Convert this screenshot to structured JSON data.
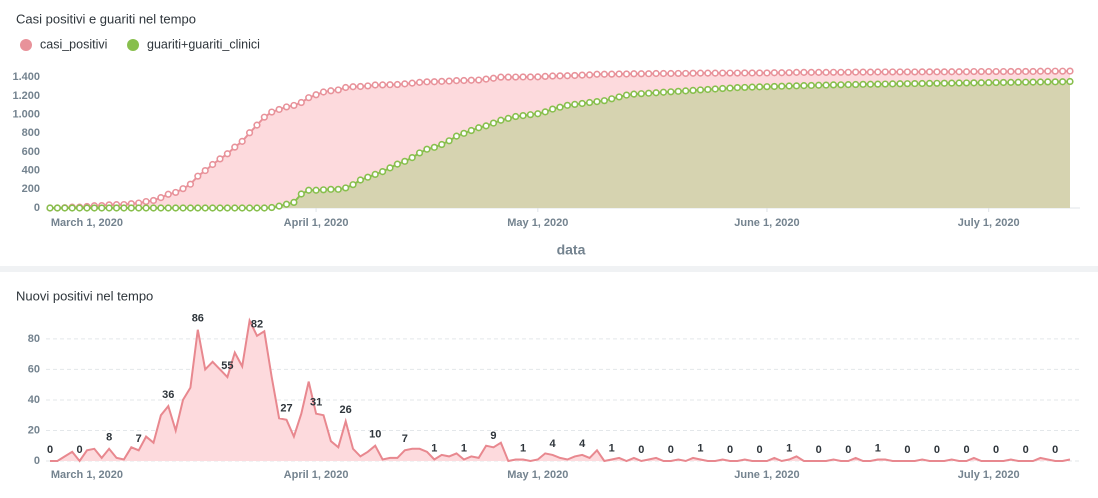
{
  "chart_data": [
    {
      "type": "area",
      "title": "Casi positivi e guariti nel tempo",
      "x_label": "data",
      "legend": "top-left",
      "markers": true,
      "grid": false,
      "x": [
        "2020-02-25",
        "2020-02-26",
        "2020-02-27",
        "2020-02-28",
        "2020-02-29",
        "2020-03-01",
        "2020-03-02",
        "2020-03-03",
        "2020-03-04",
        "2020-03-05",
        "2020-03-06",
        "2020-03-07",
        "2020-03-08",
        "2020-03-09",
        "2020-03-10",
        "2020-03-11",
        "2020-03-12",
        "2020-03-13",
        "2020-03-14",
        "2020-03-15",
        "2020-03-16",
        "2020-03-17",
        "2020-03-18",
        "2020-03-19",
        "2020-03-20",
        "2020-03-21",
        "2020-03-22",
        "2020-03-23",
        "2020-03-24",
        "2020-03-25",
        "2020-03-26",
        "2020-03-27",
        "2020-03-28",
        "2020-03-29",
        "2020-03-30",
        "2020-03-31",
        "2020-04-01",
        "2020-04-02",
        "2020-04-03",
        "2020-04-04",
        "2020-04-05",
        "2020-04-06",
        "2020-04-07",
        "2020-04-08",
        "2020-04-09",
        "2020-04-10",
        "2020-04-11",
        "2020-04-12",
        "2020-04-13",
        "2020-04-14",
        "2020-04-15",
        "2020-04-16",
        "2020-04-17",
        "2020-04-18",
        "2020-04-19",
        "2020-04-20",
        "2020-04-21",
        "2020-04-22",
        "2020-04-23",
        "2020-04-24",
        "2020-04-25",
        "2020-04-26",
        "2020-04-27",
        "2020-04-28",
        "2020-04-29",
        "2020-04-30",
        "2020-05-01",
        "2020-05-02",
        "2020-05-03",
        "2020-05-04",
        "2020-05-05",
        "2020-05-06",
        "2020-05-07",
        "2020-05-08",
        "2020-05-09",
        "2020-05-10",
        "2020-05-11",
        "2020-05-12",
        "2020-05-13",
        "2020-05-14",
        "2020-05-15",
        "2020-05-16",
        "2020-05-17",
        "2020-05-18",
        "2020-05-19",
        "2020-05-20",
        "2020-05-21",
        "2020-05-22",
        "2020-05-23",
        "2020-05-24",
        "2020-05-25",
        "2020-05-26",
        "2020-05-27",
        "2020-05-28",
        "2020-05-29",
        "2020-05-30",
        "2020-05-31",
        "2020-06-01",
        "2020-06-02",
        "2020-06-03",
        "2020-06-04",
        "2020-06-05",
        "2020-06-06",
        "2020-06-07",
        "2020-06-08",
        "2020-06-09",
        "2020-06-10",
        "2020-06-11",
        "2020-06-12",
        "2020-06-13",
        "2020-06-14",
        "2020-06-15",
        "2020-06-16",
        "2020-06-17",
        "2020-06-18",
        "2020-06-19",
        "2020-06-20",
        "2020-06-21",
        "2020-06-22",
        "2020-06-23",
        "2020-06-24",
        "2020-06-25",
        "2020-06-26",
        "2020-06-27",
        "2020-06-28",
        "2020-06-29",
        "2020-06-30",
        "2020-07-01",
        "2020-07-02",
        "2020-07-03",
        "2020-07-04",
        "2020-07-05",
        "2020-07-06",
        "2020-07-07",
        "2020-07-08",
        "2020-07-09",
        "2020-07-10",
        "2020-07-11",
        "2020-07-12"
      ],
      "xlim": [
        "2020-02-25",
        "2020-07-12"
      ],
      "xticks": [
        {
          "value": "2020-03-01",
          "label": "March 1, 2020"
        },
        {
          "value": "2020-04-01",
          "label": "April 1, 2020"
        },
        {
          "value": "2020-05-01",
          "label": "May 1, 2020"
        },
        {
          "value": "2020-06-01",
          "label": "June 1, 2020"
        },
        {
          "value": "2020-07-01",
          "label": "July 1, 2020"
        }
      ],
      "ylim": [
        0,
        1500
      ],
      "yticks": [
        0,
        200,
        400,
        600,
        800,
        {
          "value": 1000,
          "label": "1.000"
        },
        {
          "value": 1200,
          "label": "1.200"
        },
        {
          "value": 1400,
          "label": "1.400"
        }
      ],
      "series": [
        {
          "name": "casi_positivi",
          "color": "#e8929a",
          "fill": "#fddadd",
          "values": [
            0,
            0,
            3,
            9,
            9,
            16,
            24,
            26,
            34,
            36,
            37,
            46,
            53,
            69,
            81,
            111,
            147,
            167,
            207,
            255,
            341,
            401,
            466,
            526,
            581,
            652,
            714,
            806,
            888,
            973,
            1028,
            1056,
            1083,
            1099,
            1130,
            1182,
            1213,
            1243,
            1256,
            1265,
            1291,
            1299,
            1302,
            1308,
            1318,
            1319,
            1321,
            1323,
            1330,
            1338,
            1346,
            1352,
            1353,
            1357,
            1360,
            1365,
            1366,
            1369,
            1371,
            1381,
            1390,
            1402,
            1402,
            1403,
            1404,
            1404,
            1405,
            1410,
            1414,
            1416,
            1417,
            1420,
            1424,
            1426,
            1433,
            1433,
            1434,
            1436,
            1436,
            1438,
            1438,
            1439,
            1441,
            1441,
            1441,
            1442,
            1442,
            1444,
            1445,
            1445,
            1445,
            1446,
            1446,
            1446,
            1447,
            1447,
            1447,
            1447,
            1449,
            1449,
            1450,
            1453,
            1453,
            1453,
            1453,
            1453,
            1454,
            1454,
            1454,
            1456,
            1456,
            1456,
            1457,
            1458,
            1458,
            1458,
            1458,
            1458,
            1459,
            1459,
            1459,
            1459,
            1460,
            1460,
            1460,
            1462,
            1462,
            1462,
            1462,
            1462,
            1463,
            1463,
            1463,
            1463,
            1465,
            1466,
            1466,
            1466,
            1467
          ]
        },
        {
          "name": "guariti+guariti_clinici",
          "color": "#88bf4d",
          "fill": "#d6d3b0",
          "values": [
            0,
            0,
            0,
            0,
            0,
            0,
            0,
            0,
            0,
            0,
            0,
            0,
            0,
            0,
            0,
            0,
            0,
            0,
            0,
            0,
            0,
            0,
            0,
            0,
            0,
            0,
            0,
            0,
            0,
            0,
            5,
            20,
            40,
            60,
            150,
            190,
            190,
            195,
            200,
            200,
            215,
            250,
            300,
            330,
            360,
            390,
            430,
            470,
            500,
            540,
            590,
            630,
            650,
            680,
            720,
            770,
            800,
            830,
            860,
            880,
            910,
            940,
            960,
            980,
            990,
            1000,
            1010,
            1030,
            1060,
            1080,
            1100,
            1110,
            1120,
            1130,
            1140,
            1150,
            1170,
            1190,
            1210,
            1220,
            1225,
            1230,
            1235,
            1240,
            1245,
            1250,
            1255,
            1260,
            1265,
            1270,
            1275,
            1280,
            1285,
            1290,
            1292,
            1295,
            1298,
            1300,
            1302,
            1305,
            1307,
            1309,
            1311,
            1313,
            1315,
            1317,
            1319,
            1320,
            1322,
            1323,
            1325,
            1326,
            1327,
            1328,
            1330,
            1331,
            1332,
            1333,
            1334,
            1335,
            1336,
            1337,
            1338,
            1339,
            1340,
            1341,
            1342,
            1343,
            1344,
            1345,
            1346,
            1347,
            1348,
            1349,
            1350,
            1351,
            1352,
            1353,
            1355
          ]
        }
      ]
    },
    {
      "type": "area",
      "title": "Nuovi positivi nel tempo",
      "grid": true,
      "data_labels": true,
      "color": "#e8888f",
      "fill": "#fddadd",
      "x": [
        "2020-02-25",
        "2020-02-26",
        "2020-02-27",
        "2020-02-28",
        "2020-02-29",
        "2020-03-01",
        "2020-03-02",
        "2020-03-03",
        "2020-03-04",
        "2020-03-05",
        "2020-03-06",
        "2020-03-07",
        "2020-03-08",
        "2020-03-09",
        "2020-03-10",
        "2020-03-11",
        "2020-03-12",
        "2020-03-13",
        "2020-03-14",
        "2020-03-15",
        "2020-03-16",
        "2020-03-17",
        "2020-03-18",
        "2020-03-19",
        "2020-03-20",
        "2020-03-21",
        "2020-03-22",
        "2020-03-23",
        "2020-03-24",
        "2020-03-25",
        "2020-03-26",
        "2020-03-27",
        "2020-03-28",
        "2020-03-29",
        "2020-03-30",
        "2020-03-31",
        "2020-04-01",
        "2020-04-02",
        "2020-04-03",
        "2020-04-04",
        "2020-04-05",
        "2020-04-06",
        "2020-04-07",
        "2020-04-08",
        "2020-04-09",
        "2020-04-10",
        "2020-04-11",
        "2020-04-12",
        "2020-04-13",
        "2020-04-14",
        "2020-04-15",
        "2020-04-16",
        "2020-04-17",
        "2020-04-18",
        "2020-04-19",
        "2020-04-20",
        "2020-04-21",
        "2020-04-22",
        "2020-04-23",
        "2020-04-24",
        "2020-04-25",
        "2020-04-26",
        "2020-04-27",
        "2020-04-28",
        "2020-04-29",
        "2020-04-30",
        "2020-05-01",
        "2020-05-02",
        "2020-05-03",
        "2020-05-04",
        "2020-05-05",
        "2020-05-06",
        "2020-05-07",
        "2020-05-08",
        "2020-05-09",
        "2020-05-10",
        "2020-05-11",
        "2020-05-12",
        "2020-05-13",
        "2020-05-14",
        "2020-05-15",
        "2020-05-16",
        "2020-05-17",
        "2020-05-18",
        "2020-05-19",
        "2020-05-20",
        "2020-05-21",
        "2020-05-22",
        "2020-05-23",
        "2020-05-24",
        "2020-05-25",
        "2020-05-26",
        "2020-05-27",
        "2020-05-28",
        "2020-05-29",
        "2020-05-30",
        "2020-05-31",
        "2020-06-01",
        "2020-06-02",
        "2020-06-03",
        "2020-06-04",
        "2020-06-05",
        "2020-06-06",
        "2020-06-07",
        "2020-06-08",
        "2020-06-09",
        "2020-06-10",
        "2020-06-11",
        "2020-06-12",
        "2020-06-13",
        "2020-06-14",
        "2020-06-15",
        "2020-06-16",
        "2020-06-17",
        "2020-06-18",
        "2020-06-19",
        "2020-06-20",
        "2020-06-21",
        "2020-06-22",
        "2020-06-23",
        "2020-06-24",
        "2020-06-25",
        "2020-06-26",
        "2020-06-27",
        "2020-06-28",
        "2020-06-29",
        "2020-06-30",
        "2020-07-01",
        "2020-07-02",
        "2020-07-03",
        "2020-07-04",
        "2020-07-05",
        "2020-07-06",
        "2020-07-07",
        "2020-07-08",
        "2020-07-09",
        "2020-07-10",
        "2020-07-11",
        "2020-07-12"
      ],
      "xlim": [
        "2020-02-25",
        "2020-07-12"
      ],
      "xticks": [
        {
          "value": "2020-03-01",
          "label": "March 1, 2020"
        },
        {
          "value": "2020-04-01",
          "label": "April 1, 2020"
        },
        {
          "value": "2020-05-01",
          "label": "May 1, 2020"
        },
        {
          "value": "2020-06-01",
          "label": "June 1, 2020"
        },
        {
          "value": "2020-07-01",
          "label": "July 1, 2020"
        }
      ],
      "ylim": [
        0,
        95
      ],
      "yticks": [
        0,
        20,
        40,
        60,
        80
      ],
      "values": [
        0,
        0,
        3,
        6,
        0,
        7,
        8,
        2,
        8,
        2,
        1,
        9,
        7,
        16,
        12,
        30,
        36,
        20,
        40,
        48,
        86,
        60,
        65,
        60,
        55,
        71,
        62,
        92,
        82,
        85,
        55,
        28,
        27,
        16,
        31,
        52,
        31,
        30,
        13,
        9,
        26,
        8,
        3,
        6,
        10,
        1,
        2,
        2,
        7,
        8,
        8,
        6,
        1,
        4,
        3,
        5,
        1,
        3,
        2,
        10,
        9,
        12,
        0,
        1,
        1,
        0,
        1,
        5,
        4,
        2,
        1,
        3,
        4,
        2,
        7,
        0,
        1,
        2,
        0,
        2,
        0,
        1,
        2,
        0,
        0,
        1,
        0,
        2,
        1,
        0,
        0,
        1,
        0,
        0,
        1,
        0,
        0,
        0,
        2,
        0,
        1,
        3,
        0,
        0,
        0,
        0,
        1,
        0,
        0,
        2,
        0,
        0,
        1,
        1,
        0,
        0,
        0,
        0,
        1,
        0,
        0,
        0,
        1,
        0,
        0,
        2,
        0,
        0,
        0,
        0,
        1,
        0,
        0,
        0,
        2,
        1,
        0,
        0,
        1
      ]
    }
  ]
}
